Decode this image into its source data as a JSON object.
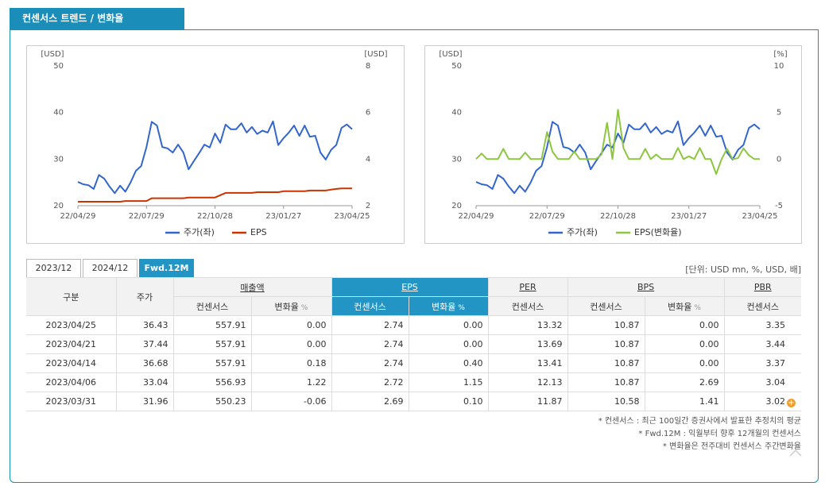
{
  "header": {
    "title": "컨센서스 트렌드 / 변화율"
  },
  "chart_data": [
    {
      "type": "line",
      "ylabel": "[USD]",
      "y2label": "[USD]",
      "categories": [
        "22/04/29",
        null,
        null,
        null,
        null,
        null,
        null,
        null,
        null,
        null,
        null,
        null,
        null,
        "22/07/29",
        null,
        null,
        null,
        null,
        null,
        null,
        null,
        null,
        null,
        null,
        null,
        null,
        "22/10/28",
        null,
        null,
        null,
        null,
        null,
        null,
        null,
        null,
        null,
        null,
        null,
        null,
        "23/01/27",
        null,
        null,
        null,
        null,
        null,
        null,
        null,
        null,
        null,
        null,
        null,
        null,
        "23/04/25"
      ],
      "ylim": [
        20,
        50
      ],
      "yticks": [
        20,
        30,
        40,
        50
      ],
      "y2lim": [
        2,
        8
      ],
      "y2ticks": [
        2,
        4,
        6,
        8
      ],
      "series": [
        {
          "name": "주가(좌)",
          "color": "#3366cc",
          "values": [
            25.1,
            24.6,
            24.4,
            23.6,
            26.6,
            25.8,
            24.1,
            22.7,
            24.3,
            23,
            25,
            27.5,
            28.5,
            32.6,
            38,
            37.2,
            32.6,
            32.3,
            31.4,
            33.1,
            31.4,
            27.8,
            29.6,
            31.3,
            33.1,
            32.5,
            35.5,
            33.5,
            37.4,
            36.4,
            36.4,
            37.7,
            35.7,
            36.9,
            35.4,
            36.1,
            35.7,
            38.1,
            33,
            34.5,
            35.7,
            37.2,
            35,
            37.2,
            34.8,
            35,
            31.4,
            29.9,
            31.96,
            33.04,
            36.68,
            37.44,
            36.43
          ]
        },
        {
          "name": "EPS",
          "color": "#cc3300",
          "axis": "y2",
          "values": [
            2.17,
            2.17,
            2.17,
            2.17,
            2.17,
            2.17,
            2.17,
            2.17,
            2.17,
            2.2,
            2.2,
            2.2,
            2.2,
            2.2,
            2.32,
            2.32,
            2.32,
            2.32,
            2.32,
            2.32,
            2.32,
            2.35,
            2.35,
            2.35,
            2.35,
            2.35,
            2.35,
            2.45,
            2.55,
            2.55,
            2.55,
            2.55,
            2.55,
            2.55,
            2.58,
            2.58,
            2.58,
            2.58,
            2.58,
            2.62,
            2.62,
            2.62,
            2.62,
            2.62,
            2.65,
            2.65,
            2.65,
            2.65,
            2.69,
            2.72,
            2.74,
            2.74,
            2.74
          ]
        }
      ]
    },
    {
      "type": "line",
      "ylabel": "[USD]",
      "y2label": "[%]",
      "categories": [
        "22/04/29",
        null,
        null,
        null,
        null,
        null,
        null,
        null,
        null,
        null,
        null,
        null,
        null,
        "22/07/29",
        null,
        null,
        null,
        null,
        null,
        null,
        null,
        null,
        null,
        null,
        null,
        null,
        "22/10/28",
        null,
        null,
        null,
        null,
        null,
        null,
        null,
        null,
        null,
        null,
        null,
        null,
        "23/01/27",
        null,
        null,
        null,
        null,
        null,
        null,
        null,
        null,
        null,
        null,
        null,
        null,
        "23/04/25"
      ],
      "ylim": [
        20,
        50
      ],
      "yticks": [
        20,
        30,
        40,
        50
      ],
      "y2lim": [
        -5,
        10
      ],
      "y2ticks": [
        -5,
        0,
        5,
        10
      ],
      "series": [
        {
          "name": "주가(좌)",
          "color": "#3366cc",
          "values": [
            25.1,
            24.6,
            24.4,
            23.6,
            26.6,
            25.8,
            24.1,
            22.7,
            24.3,
            23,
            25,
            27.5,
            28.5,
            32.6,
            38,
            37.2,
            32.6,
            32.3,
            31.4,
            33.1,
            31.4,
            27.8,
            29.6,
            31.3,
            33.1,
            32.5,
            35.5,
            33.5,
            37.4,
            36.4,
            36.4,
            37.7,
            35.7,
            36.9,
            35.4,
            36.1,
            35.7,
            38.1,
            33,
            34.5,
            35.7,
            37.2,
            35,
            37.2,
            34.8,
            35,
            31.4,
            29.9,
            31.96,
            33.04,
            36.68,
            37.44,
            36.43
          ]
        },
        {
          "name": "EPS(변화율)",
          "color": "#8dc63f",
          "axis": "y2",
          "values": [
            0,
            0.6,
            0,
            0,
            0,
            1.1,
            0,
            0,
            0,
            0.7,
            0,
            0,
            0,
            2.9,
            0.8,
            0,
            0,
            0,
            0.8,
            0,
            0,
            0,
            0,
            0.5,
            3.9,
            0,
            5.3,
            1.2,
            0,
            0,
            0,
            1.1,
            0,
            0.5,
            0,
            0,
            0,
            1.2,
            0,
            0.3,
            0,
            1.2,
            0,
            0,
            -1.6,
            0,
            1.1,
            0,
            0.1,
            1.15,
            0.4,
            0,
            0
          ]
        }
      ]
    }
  ],
  "tabs": [
    "2023/12",
    "2024/12",
    "Fwd.12M"
  ],
  "unit": "[단위: USD mn, %, USD, 배]",
  "table": {
    "header": [
      "구분",
      "주가",
      "매출액",
      "EPS",
      "PER",
      "BPS",
      "PBR"
    ],
    "subheader": [
      "컨센서스",
      "변화율",
      "컨센서스",
      "변화율",
      "컨센서스",
      "컨센서스",
      "변화율",
      "컨센서스"
    ],
    "pct": "%",
    "rows": [
      [
        "2023/04/25",
        "36.43",
        "557.91",
        "0.00",
        "2.74",
        "0.00",
        "13.32",
        "10.87",
        "0.00",
        "3.35"
      ],
      [
        "2023/04/21",
        "37.44",
        "557.91",
        "0.00",
        "2.74",
        "0.00",
        "13.69",
        "10.87",
        "0.00",
        "3.44"
      ],
      [
        "2023/04/14",
        "36.68",
        "557.91",
        "0.18",
        "2.74",
        "0.40",
        "13.41",
        "10.87",
        "0.00",
        "3.37"
      ],
      [
        "2023/04/06",
        "33.04",
        "556.93",
        "1.22",
        "2.72",
        "1.15",
        "12.13",
        "10.87",
        "2.69",
        "3.04"
      ],
      [
        "2023/03/31",
        "31.96",
        "550.23",
        "-0.06",
        "2.69",
        "0.10",
        "11.87",
        "10.58",
        "1.41",
        "3.02"
      ]
    ]
  },
  "notes": [
    "* 컨센서스 : 최근 100일간 증권사에서 발표한 추정치의 평균",
    "* Fwd.12M : 익월부터 향후 12개월의 컨센서스",
    "* 변화율은 전주대비 컨센서스 주간변화율"
  ]
}
